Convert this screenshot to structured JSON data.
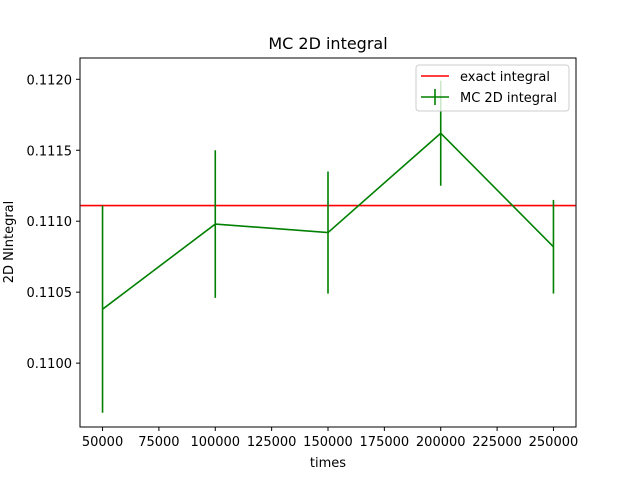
{
  "chart_data": {
    "type": "line",
    "title": "MC 2D integral",
    "xlabel": "times",
    "ylabel": "2D NIntegral",
    "xlim": [
      40000,
      260000
    ],
    "ylim": [
      0.10955,
      0.11215
    ],
    "x_ticks": [
      50000,
      75000,
      100000,
      125000,
      150000,
      175000,
      200000,
      225000,
      250000
    ],
    "y_ticks": [
      0.11,
      0.1105,
      0.111,
      0.1115,
      0.112
    ],
    "x_tick_labels": [
      "50000",
      "75000",
      "100000",
      "125000",
      "150000",
      "175000",
      "200000",
      "225000",
      "250000"
    ],
    "y_tick_labels": [
      "0.1100",
      "0.1105",
      "0.1110",
      "0.1115",
      "0.1120"
    ],
    "grid": false,
    "legend_position": "top-right",
    "series": [
      {
        "name": "exact integral",
        "kind": "hline",
        "color": "#ff0000",
        "y": 0.11111
      },
      {
        "name": "MC 2D integral",
        "kind": "errorbar",
        "color": "#008000",
        "x": [
          50000,
          100000,
          150000,
          200000,
          250000
        ],
        "y": [
          0.11038,
          0.11098,
          0.11092,
          0.11162,
          0.11082
        ],
        "yerr": [
          0.00073,
          0.00052,
          0.00043,
          0.00037,
          0.00033
        ]
      }
    ]
  }
}
